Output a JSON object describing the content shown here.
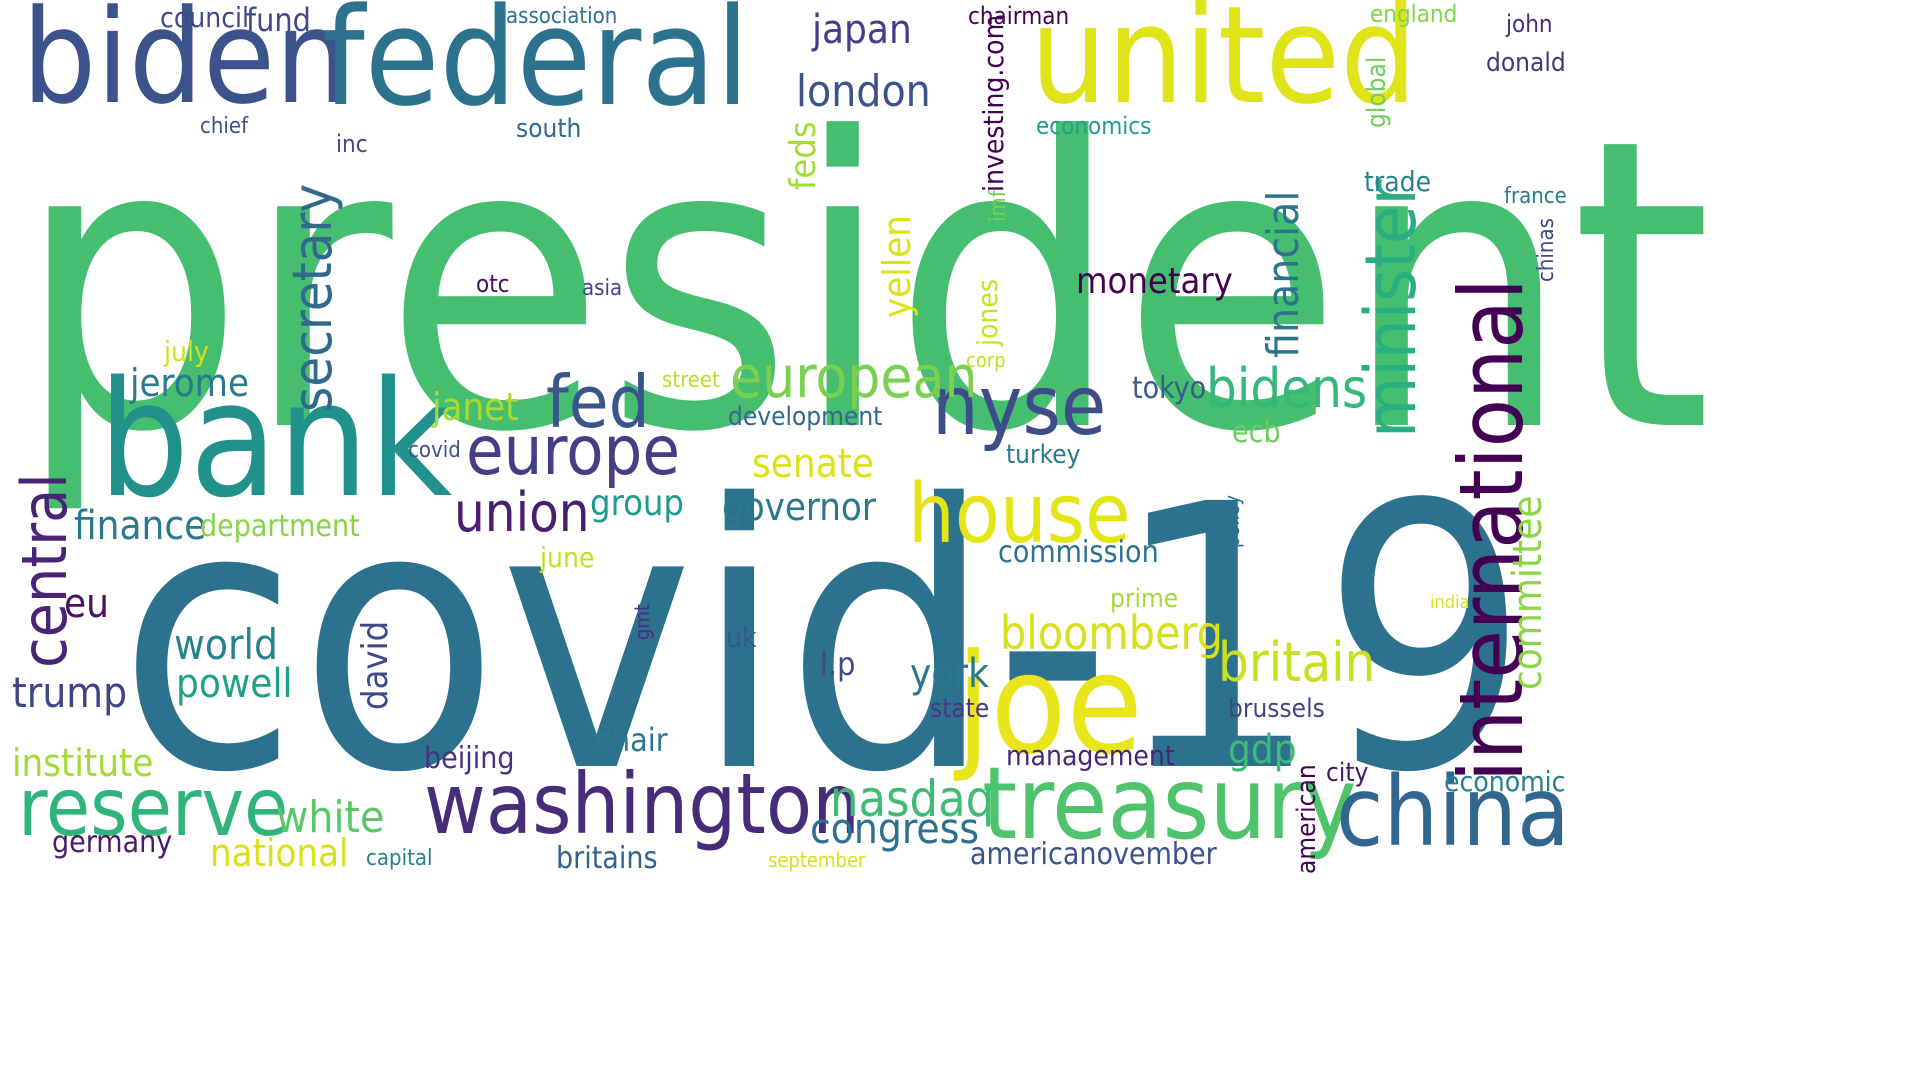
{
  "colors": {
    "background": "#ffffff",
    "palette": [
      "#440154",
      "#482878",
      "#3b528b",
      "#2c728e",
      "#21918c",
      "#28ae80",
      "#5ec962",
      "#addc30",
      "#fde725"
    ]
  },
  "words": [
    {
      "text": "president",
      "color": "#45be70"
    },
    {
      "text": "covid-19",
      "color": "#2c728e"
    },
    {
      "text": "biden",
      "color": "#3b528b"
    },
    {
      "text": "federal",
      "color": "#2c728e"
    },
    {
      "text": "united",
      "color": "#dfe318"
    },
    {
      "text": "bank",
      "color": "#21918c"
    },
    {
      "text": "joe",
      "color": "#e8e51a"
    },
    {
      "text": "washington",
      "color": "#472c7a"
    },
    {
      "text": "treasury",
      "color": "#4ec36b"
    },
    {
      "text": "china",
      "color": "#31668e"
    },
    {
      "text": "reserve",
      "color": "#2fb47c"
    },
    {
      "text": "nyse",
      "color": "#3e4c8a"
    },
    {
      "text": "house",
      "color": "#e4e419"
    },
    {
      "text": "international",
      "color": "#440154"
    },
    {
      "text": "minister",
      "color": "#28ae80"
    },
    {
      "text": "europe",
      "color": "#433e85"
    },
    {
      "text": "fed",
      "color": "#39568c"
    },
    {
      "text": "european",
      "color": "#7ad151"
    },
    {
      "text": "central",
      "color": "#482475"
    },
    {
      "text": "secretary",
      "color": "#31688e"
    },
    {
      "text": "union",
      "color": "#481f70"
    },
    {
      "text": "bidens",
      "color": "#35b779"
    },
    {
      "text": "britain",
      "color": "#c8e020"
    },
    {
      "text": "bloomberg",
      "color": "#d5e21a"
    },
    {
      "text": "nasdaq",
      "color": "#3fbc73"
    },
    {
      "text": "congress",
      "color": "#2d708e"
    },
    {
      "text": "london",
      "color": "#3b528b"
    },
    {
      "text": "japan",
      "color": "#433e85"
    },
    {
      "text": "financial",
      "color": "#2c738e"
    },
    {
      "text": "white",
      "color": "#58c765"
    },
    {
      "text": "committee",
      "color": "#8bd646"
    },
    {
      "text": "trump",
      "color": "#414487"
    },
    {
      "text": "world",
      "color": "#26828e"
    },
    {
      "text": "powell",
      "color": "#1fa187"
    },
    {
      "text": "finance",
      "color": "#2a788e"
    },
    {
      "text": "jerome",
      "color": "#2a788e"
    },
    {
      "text": "institute",
      "color": "#a2da37"
    },
    {
      "text": "national",
      "color": "#d8e219"
    },
    {
      "text": "governor",
      "color": "#2a788e"
    },
    {
      "text": "senate",
      "color": "#dde318"
    },
    {
      "text": "york",
      "color": "#2a788e"
    },
    {
      "text": "gdp",
      "color": "#3dbc74"
    },
    {
      "text": "eu",
      "color": "#471063"
    },
    {
      "text": "monetary",
      "color": "#440154"
    },
    {
      "text": "yellen",
      "color": "#dde318"
    },
    {
      "text": "janet",
      "color": "#a8db34"
    },
    {
      "text": "group",
      "color": "#1e9b8a"
    },
    {
      "text": "david",
      "color": "#3e4989"
    },
    {
      "text": "chair",
      "color": "#2a788e"
    },
    {
      "text": "ecb",
      "color": "#6ccd5a"
    },
    {
      "text": "feds",
      "color": "#a5db36"
    },
    {
      "text": "investing.com",
      "color": "#440154"
    },
    {
      "text": "commission",
      "color": "#2c728e"
    },
    {
      "text": "economic",
      "color": "#287d8e"
    },
    {
      "text": "tokyo",
      "color": "#365c8d"
    },
    {
      "text": "beijing",
      "color": "#46327e"
    },
    {
      "text": "department",
      "color": "#86d549"
    },
    {
      "text": "germany",
      "color": "#481a6c"
    },
    {
      "text": "management",
      "color": "#482677"
    },
    {
      "text": "americanovember",
      "color": "#3b528b"
    },
    {
      "text": "britains",
      "color": "#33638d"
    },
    {
      "text": "american",
      "color": "#440154"
    },
    {
      "text": "council",
      "color": "#3e4989"
    },
    {
      "text": "fund",
      "color": "#3e4989"
    },
    {
      "text": "development",
      "color": "#31688e"
    },
    {
      "text": "trade",
      "color": "#26828e"
    },
    {
      "text": "june",
      "color": "#c2df23"
    },
    {
      "text": "city",
      "color": "#471365"
    },
    {
      "text": "state",
      "color": "#453781"
    },
    {
      "text": "economics",
      "color": "#1f9e89"
    },
    {
      "text": "turkey",
      "color": "#2a788e"
    },
    {
      "text": "brussels",
      "color": "#404688"
    },
    {
      "text": "l.p",
      "color": "#404688"
    },
    {
      "text": "jones",
      "color": "#cae11f"
    },
    {
      "text": "prime",
      "color": "#a5db36"
    },
    {
      "text": "uk",
      "color": "#39568c"
    },
    {
      "text": "south",
      "color": "#31688e"
    },
    {
      "text": "chairman",
      "color": "#440154"
    },
    {
      "text": "donald",
      "color": "#453781"
    },
    {
      "text": "street",
      "color": "#b5de2b"
    },
    {
      "text": "july",
      "color": "#d0e11c"
    },
    {
      "text": "asia",
      "color": "#3f4788"
    },
    {
      "text": "otc",
      "color": "#471063"
    },
    {
      "text": "inc",
      "color": "#3e4a89"
    },
    {
      "text": "chief",
      "color": "#3b528b"
    },
    {
      "text": "covid",
      "color": "#3b528b"
    },
    {
      "text": "global",
      "color": "#6ece58"
    },
    {
      "text": "john",
      "color": "#46307e"
    },
    {
      "text": "england",
      "color": "#84d44b"
    },
    {
      "text": "association",
      "color": "#2c728e"
    },
    {
      "text": "france",
      "color": "#287c8e"
    },
    {
      "text": "chinas",
      "color": "#3e4989"
    },
    {
      "text": "imf",
      "color": "#75d054"
    },
    {
      "text": "capital",
      "color": "#277f8e"
    },
    {
      "text": "september",
      "color": "#d2e21b"
    },
    {
      "text": "india",
      "color": "#dae319"
    },
    {
      "text": "policy",
      "color": "#2e6e8e"
    },
    {
      "text": "gmt",
      "color": "#472d7b"
    },
    {
      "text": "corp",
      "color": "#c0df25"
    }
  ]
}
